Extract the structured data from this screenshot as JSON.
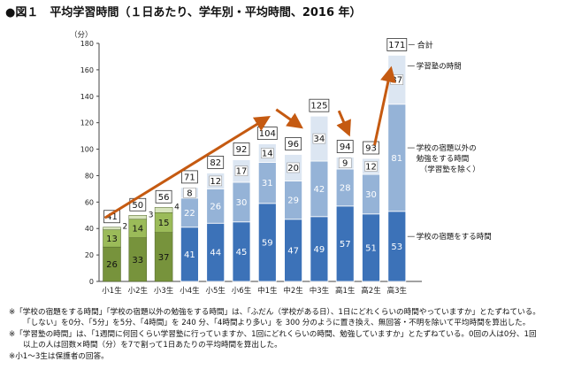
{
  "title": "●図１　平均学習時間（１日あたり、学年別・平均時間、2016 年）",
  "chart_data": {
    "type": "bar",
    "stacked": true,
    "ylabel": "（分）",
    "ylim": [
      0,
      180
    ],
    "yticks": [
      0,
      20,
      40,
      60,
      80,
      100,
      120,
      140,
      160,
      180
    ],
    "categories": [
      "小1生",
      "小2生",
      "小3生",
      "小4生",
      "小5生",
      "小6生",
      "中1生",
      "中2生",
      "中3生",
      "高1生",
      "高2生",
      "高3生"
    ],
    "series": [
      {
        "name": "学校の宿題をする時間",
        "values": [
          26,
          33,
          37,
          41,
          44,
          45,
          59,
          47,
          49,
          57,
          51,
          53
        ]
      },
      {
        "name": "学校の宿題以外の勉強をする時間（学習塾を除く）",
        "values": [
          13,
          14,
          15,
          22,
          26,
          30,
          31,
          29,
          42,
          28,
          30,
          81
        ]
      },
      {
        "name": "学習塾の時間",
        "values": [
          2,
          3,
          4,
          8,
          12,
          17,
          14,
          20,
          34,
          9,
          12,
          37
        ]
      }
    ],
    "totals": [
      41,
      50,
      56,
      71,
      82,
      92,
      104,
      96,
      125,
      94,
      93,
      171
    ],
    "annotations": {
      "total_label": "合計",
      "right_labels": [
        "学習塾の時間",
        "学校の宿題以外の",
        "勉強をする時間",
        "（学習塾を除く）",
        "学校の宿題をする時間"
      ]
    },
    "grid": false
  },
  "colors": {
    "elem_dark": "#77933c",
    "elem_mid": "#9bbb59",
    "elem_light": "#d7e4bc",
    "sec_dark": "#3c72b8",
    "sec_mid": "#95b3d7",
    "sec_light": "#dce6f2",
    "arrow": "#c55a11"
  },
  "notes": [
    "※「学校の宿題をする時間」「学校の宿題以外の勉強をする時間」は、「ふだん（学校がある日）、1日にどれくらいの時間やっていますか」とたずねている。",
    "「しない」を0分、「5分」を5分、「4時間」を 240 分、「4時間より多い」を 300 分のように置き換え、無回答・不明を除いて平均時間を算出した。",
    "※「学習塾の時間」は、「1週間に何回くらい学習塾に行っていますか、1回にどれくらいの時間、勉強していますか」とたずねている。0回の人は0分、1回",
    "以上の人は回数×時間（分）を7で割って1日あたりの平均時間を算出した。",
    "※小1～3生は保護者の回答。"
  ]
}
